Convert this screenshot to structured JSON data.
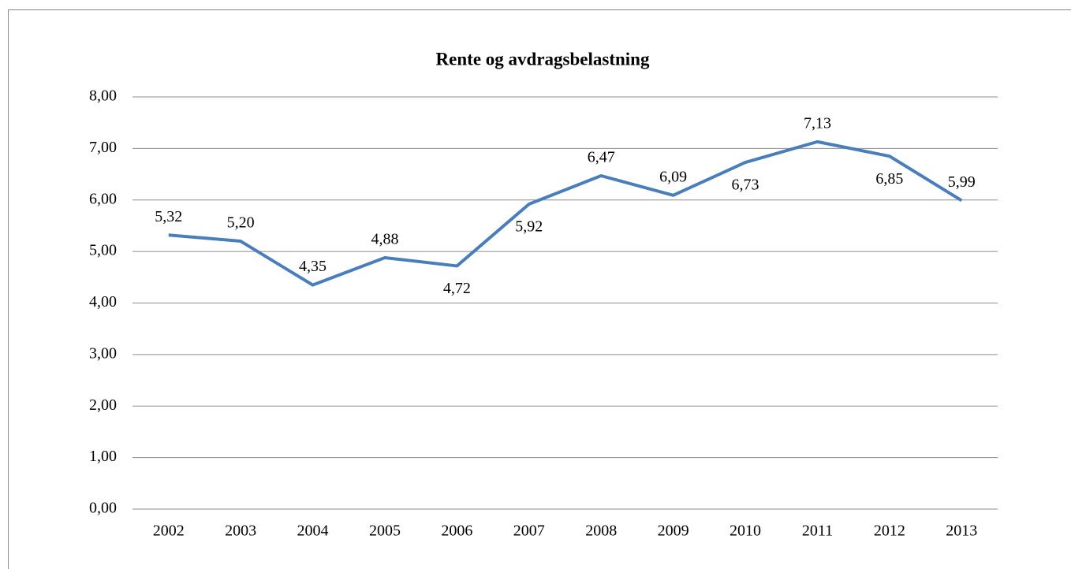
{
  "chart_data": {
    "type": "line",
    "title": "Rente og avdragsbelastning",
    "categories": [
      "2002",
      "2003",
      "2004",
      "2005",
      "2006",
      "2007",
      "2008",
      "2009",
      "2010",
      "2011",
      "2012",
      "2013"
    ],
    "series": [
      {
        "color": "#4a7ebb",
        "values": [
          5.32,
          5.2,
          4.35,
          4.88,
          4.72,
          5.92,
          6.47,
          6.09,
          6.73,
          7.13,
          6.85,
          5.99
        ],
        "value_labels": [
          "5,32",
          "5,20",
          "4,35",
          "4,88",
          "4,72",
          "5,92",
          "6,47",
          "6,09",
          "6,73",
          "7,13",
          "6,85",
          "5,99"
        ]
      }
    ],
    "ylim": [
      0,
      8
    ],
    "yticks": [
      {
        "value": 0,
        "label": "0,00"
      },
      {
        "value": 1,
        "label": "1,00"
      },
      {
        "value": 2,
        "label": "2,00"
      },
      {
        "value": 3,
        "label": "3,00"
      },
      {
        "value": 4,
        "label": "4,00"
      },
      {
        "value": 5,
        "label": "5,00"
      },
      {
        "value": 6,
        "label": "6,00"
      },
      {
        "value": 7,
        "label": "7,00"
      },
      {
        "value": 8,
        "label": "8,00"
      }
    ],
    "grid": true
  }
}
